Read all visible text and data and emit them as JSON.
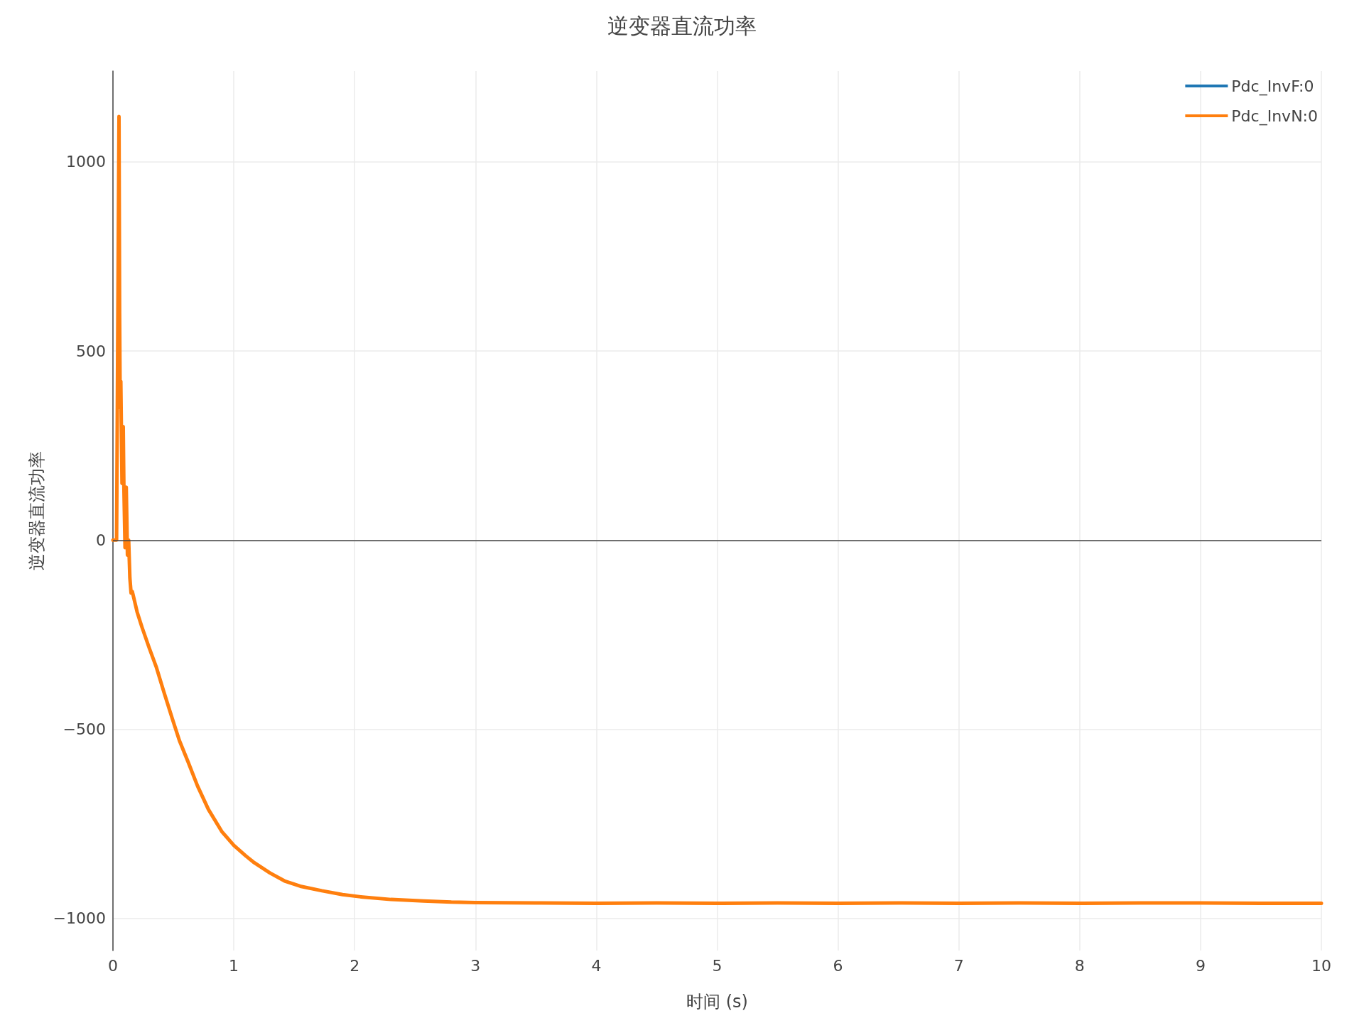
{
  "chart_data": {
    "type": "line",
    "title": "逆变器直流功率",
    "xlabel": "时间 (s)",
    "ylabel": "逆变器直流功率",
    "xlim": [
      0,
      10
    ],
    "xticks": [
      0,
      1,
      2,
      3,
      4,
      5,
      6,
      7,
      8,
      9,
      10
    ],
    "ylim": [
      -1085,
      1240
    ],
    "yticks": [
      {
        "value": -1000,
        "label": "−1000"
      },
      {
        "value": -500,
        "label": "−500"
      },
      0,
      500,
      1000
    ],
    "grid": true,
    "legend": "top right",
    "marker": "none",
    "line_style": "solid",
    "ref_lines": [
      {
        "axis": "y",
        "value": 0,
        "color": "#444444"
      }
    ],
    "series": [
      {
        "name": "Pdc_InvF:0",
        "color": "#1f77b4"
      },
      {
        "name": "Pdc_InvN:0",
        "color": "#ff7f0e",
        "x": [
          0,
          0.03,
          0.05,
          0.055,
          0.06,
          0.065,
          0.075,
          0.085,
          0.09,
          0.1,
          0.11,
          0.12,
          0.13,
          0.14,
          0.15,
          0.16,
          0.2,
          0.24,
          0.3,
          0.36,
          0.42,
          0.49,
          0.55,
          0.62,
          0.7,
          0.79,
          0.9,
          1.0,
          1.1,
          1.17,
          1.3,
          1.42,
          1.55,
          1.73,
          1.9,
          2.05,
          2.3,
          2.57,
          2.8,
          3.0,
          3.5,
          4.0,
          4.5,
          5.0,
          5.5,
          6.0,
          6.5,
          7.0,
          7.5,
          8.0,
          8.5,
          9.0,
          9.5,
          10
        ],
        "values": [
          0,
          0,
          1120,
          600,
          350,
          420,
          150,
          300,
          150,
          -20,
          140,
          -40,
          0,
          -100,
          -140,
          -136,
          -190,
          -230,
          -285,
          -337,
          -400,
          -471,
          -530,
          -585,
          -650,
          -712,
          -770,
          -807,
          -835,
          -853,
          -880,
          -901,
          -915,
          -927,
          -937,
          -943,
          -950,
          -954,
          -957,
          -958,
          -959,
          -960,
          -959,
          -960,
          -959,
          -960,
          -959,
          -960,
          -959,
          -960,
          -959,
          -959,
          -960,
          -960
        ]
      }
    ]
  }
}
